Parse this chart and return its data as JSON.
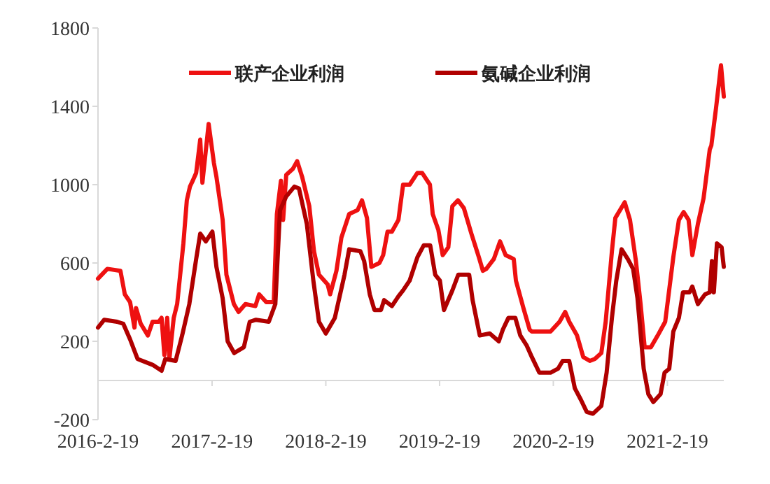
{
  "chart_data": {
    "type": "line",
    "legend": "top",
    "xlim": [
      "2016-02-19",
      "2021-08-19"
    ],
    "ylim": [
      -200,
      1800
    ],
    "yticks": [
      -200,
      200,
      600,
      1000,
      1400,
      1800
    ],
    "xticks": [
      {
        "value": "2016-02-19",
        "label": "2016-2-19"
      },
      {
        "value": "2017-02-19",
        "label": "2017-2-19"
      },
      {
        "value": "2018-02-19",
        "label": "2018-2-19"
      },
      {
        "value": "2019-02-19",
        "label": "2019-2-19"
      },
      {
        "value": "2020-02-19",
        "label": "2020-2-19"
      },
      {
        "value": "2021-02-19",
        "label": "2021-2-19"
      }
    ],
    "series": [
      {
        "name": "联产企业利润",
        "color": "#ee1111",
        "x": [
          "2016-02-19",
          "2016-03-20",
          "2016-05-01",
          "2016-05-15",
          "2016-06-01",
          "2016-06-15",
          "2016-06-20",
          "2016-07-05",
          "2016-07-28",
          "2016-08-12",
          "2016-09-01",
          "2016-09-10",
          "2016-09-19",
          "2016-09-28",
          "2016-10-05",
          "2016-10-19",
          "2016-10-30",
          "2016-11-19",
          "2016-11-30",
          "2016-12-10",
          "2016-12-19",
          "2016-12-30",
          "2017-01-12",
          "2017-01-19",
          "2017-02-08",
          "2017-02-25",
          "2017-03-05",
          "2017-03-25",
          "2017-04-06",
          "2017-04-30",
          "2017-05-15",
          "2017-06-06",
          "2017-07-08",
          "2017-07-20",
          "2017-08-12",
          "2017-09-05",
          "2017-09-15",
          "2017-09-28",
          "2017-10-05",
          "2017-10-15",
          "2017-11-05",
          "2017-11-19",
          "2017-12-05",
          "2017-12-28",
          "2018-01-12",
          "2018-01-28",
          "2018-02-25",
          "2018-03-05",
          "2018-03-25",
          "2018-04-10",
          "2018-05-05",
          "2018-06-01",
          "2018-06-15",
          "2018-07-01",
          "2018-07-15",
          "2018-08-10",
          "2018-08-22",
          "2018-09-05",
          "2018-09-19",
          "2018-10-10",
          "2018-10-25",
          "2018-11-15",
          "2018-12-10",
          "2018-12-25",
          "2019-01-19",
          "2019-01-28",
          "2019-02-15",
          "2019-03-01",
          "2019-03-19",
          "2019-04-01",
          "2019-04-19",
          "2019-05-08",
          "2019-06-01",
          "2019-06-25",
          "2019-07-08",
          "2019-07-19",
          "2019-08-12",
          "2019-09-01",
          "2019-09-19",
          "2019-10-15",
          "2019-10-22",
          "2019-11-15",
          "2019-12-05",
          "2019-12-12",
          "2020-02-10",
          "2020-03-10",
          "2020-03-28",
          "2020-04-10",
          "2020-05-05",
          "2020-05-25",
          "2020-06-15",
          "2020-07-01",
          "2020-07-22",
          "2020-08-05",
          "2020-08-25",
          "2020-09-05",
          "2020-10-05",
          "2020-10-22",
          "2020-11-10",
          "2020-11-25",
          "2020-12-08",
          "2020-12-28",
          "2021-01-19",
          "2021-02-12",
          "2021-03-10",
          "2021-03-28",
          "2021-04-12",
          "2021-04-28",
          "2021-05-10",
          "2021-05-28",
          "2021-06-15",
          "2021-07-05",
          "2021-07-10",
          "2021-07-25",
          "2021-08-10",
          "2021-08-19"
        ],
        "values": [
          520,
          570,
          560,
          440,
          400,
          270,
          370,
          290,
          230,
          300,
          300,
          320,
          130,
          320,
          110,
          320,
          390,
          700,
          920,
          990,
          1020,
          1060,
          1230,
          1010,
          1310,
          1110,
          1040,
          820,
          540,
          390,
          350,
          390,
          380,
          440,
          400,
          400,
          850,
          1020,
          820,
          1050,
          1080,
          1120,
          1040,
          890,
          660,
          540,
          490,
          440,
          560,
          730,
          850,
          870,
          920,
          830,
          580,
          600,
          640,
          760,
          760,
          820,
          1000,
          1000,
          1060,
          1060,
          1000,
          850,
          770,
          640,
          680,
          890,
          920,
          880,
          750,
          630,
          560,
          570,
          620,
          710,
          640,
          620,
          510,
          370,
          260,
          250,
          250,
          300,
          350,
          300,
          230,
          120,
          100,
          110,
          140,
          300,
          660,
          830,
          910,
          820,
          610,
          390,
          170,
          170,
          230,
          300,
          630,
          820,
          860,
          820,
          640,
          800,
          930,
          1180,
          1200,
          1390,
          1610,
          1450
        ]
      },
      {
        "name": "氨碱企业利润",
        "color": "#b00000",
        "x": [
          "2016-02-19",
          "2016-03-10",
          "2016-04-20",
          "2016-05-10",
          "2016-06-01",
          "2016-06-25",
          "2016-08-12",
          "2016-09-10",
          "2016-09-22",
          "2016-10-25",
          "2016-11-15",
          "2016-12-08",
          "2016-12-30",
          "2017-01-12",
          "2017-01-30",
          "2017-02-20",
          "2017-03-05",
          "2017-03-25",
          "2017-04-10",
          "2017-05-01",
          "2017-06-01",
          "2017-06-20",
          "2017-07-10",
          "2017-08-20",
          "2017-09-10",
          "2017-09-25",
          "2017-10-15",
          "2017-11-10",
          "2017-11-25",
          "2017-12-20",
          "2018-01-10",
          "2018-01-28",
          "2018-02-19",
          "2018-03-20",
          "2018-04-20",
          "2018-05-05",
          "2018-06-10",
          "2018-06-22",
          "2018-07-10",
          "2018-07-25",
          "2018-08-15",
          "2018-08-25",
          "2018-09-19",
          "2018-10-10",
          "2018-10-25",
          "2018-11-15",
          "2018-12-10",
          "2018-12-30",
          "2019-01-20",
          "2019-02-05",
          "2019-02-20",
          "2019-03-05",
          "2019-04-01",
          "2019-04-20",
          "2019-05-25",
          "2019-06-05",
          "2019-06-28",
          "2019-07-30",
          "2019-08-28",
          "2019-09-10",
          "2019-09-28",
          "2019-10-20",
          "2019-11-05",
          "2019-11-25",
          "2019-12-12",
          "2020-01-05",
          "2020-02-10",
          "2020-03-05",
          "2020-03-20",
          "2020-04-10",
          "2020-04-28",
          "2020-05-18",
          "2020-06-05",
          "2020-06-25",
          "2020-07-22",
          "2020-08-08",
          "2020-08-25",
          "2020-09-08",
          "2020-09-25",
          "2020-10-15",
          "2020-11-01",
          "2020-11-15",
          "2020-12-05",
          "2020-12-20",
          "2021-01-05",
          "2021-01-28",
          "2021-02-10",
          "2021-02-25",
          "2021-03-10",
          "2021-03-28",
          "2021-04-10",
          "2021-05-01",
          "2021-05-10",
          "2021-05-28",
          "2021-06-20",
          "2021-07-05",
          "2021-07-12",
          "2021-07-18",
          "2021-07-28",
          "2021-08-12",
          "2021-08-19"
        ],
        "values": [
          270,
          310,
          300,
          290,
          210,
          110,
          80,
          50,
          110,
          100,
          230,
          390,
          620,
          750,
          710,
          760,
          580,
          420,
          200,
          140,
          170,
          300,
          310,
          300,
          390,
          870,
          940,
          990,
          980,
          800,
          510,
          300,
          240,
          320,
          540,
          670,
          660,
          610,
          440,
          360,
          360,
          410,
          380,
          430,
          460,
          510,
          630,
          690,
          690,
          540,
          510,
          360,
          460,
          540,
          540,
          410,
          230,
          240,
          200,
          260,
          320,
          320,
          230,
          180,
          120,
          40,
          40,
          60,
          100,
          100,
          -40,
          -100,
          -160,
          -170,
          -130,
          40,
          320,
          510,
          670,
          620,
          570,
          420,
          60,
          -70,
          -110,
          -70,
          40,
          60,
          250,
          320,
          450,
          450,
          480,
          390,
          440,
          450,
          610,
          450,
          700,
          680,
          580
        ]
      }
    ]
  }
}
